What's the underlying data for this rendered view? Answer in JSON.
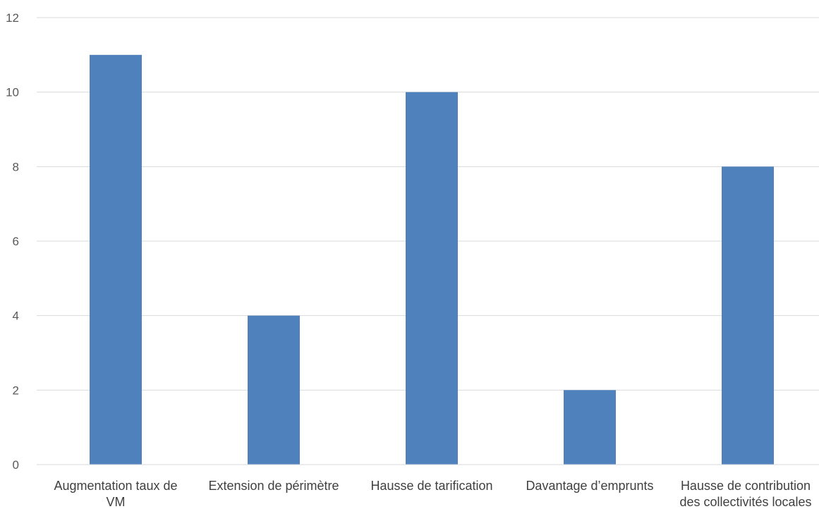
{
  "chart_data": {
    "type": "bar",
    "title": "",
    "xlabel": "",
    "ylabel": "",
    "categories": [
      [
        "Augmentation taux de",
        "VM"
      ],
      [
        "Extension de périmètre"
      ],
      [
        "Hausse de tarification"
      ],
      [
        "Davantage d’emprunts"
      ],
      [
        "Hausse de contribution",
        "des collectivités locales"
      ]
    ],
    "values": [
      11,
      4,
      10,
      2,
      8
    ],
    "ylim": [
      0,
      12
    ],
    "yticks": [
      "0",
      "2",
      "4",
      "6",
      "8",
      "10",
      "12"
    ],
    "grid": true,
    "legend": "none",
    "bar_color": "#4f81bd"
  }
}
